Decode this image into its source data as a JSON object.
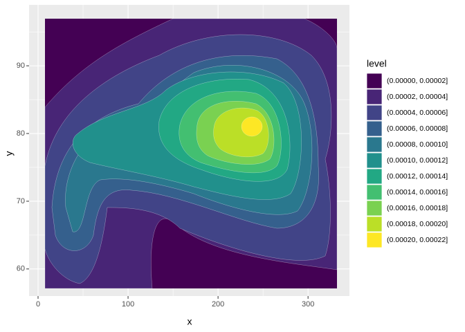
{
  "chart_data": {
    "type": "contour",
    "x_label": "x",
    "y_label": "y",
    "legend_title": "level",
    "xlim": [
      -10,
      346
    ],
    "ylim": [
      56,
      99
    ],
    "xticks": [
      0,
      100,
      200,
      300
    ],
    "yticks": [
      60,
      70,
      80,
      90
    ],
    "grid": true,
    "series": [
      {
        "name": "(0.00000, 0.00002]",
        "color": "#440154"
      },
      {
        "name": "(0.00002, 0.00004]",
        "color": "#482576"
      },
      {
        "name": "(0.00004, 0.00006]",
        "color": "#414487"
      },
      {
        "name": "(0.00006, 0.00008]",
        "color": "#35608D"
      },
      {
        "name": "(0.00008, 0.00010]",
        "color": "#2A788E"
      },
      {
        "name": "(0.00010, 0.00012]",
        "color": "#21908C"
      },
      {
        "name": "(0.00012, 0.00014]",
        "color": "#22A884"
      },
      {
        "name": "(0.00014, 0.00016]",
        "color": "#43BF71"
      },
      {
        "name": "(0.00016, 0.00018]",
        "color": "#7AD151"
      },
      {
        "name": "(0.00018, 0.00020]",
        "color": "#BBDF27"
      },
      {
        "name": "(0.00020, 0.00022]",
        "color": "#FDE725"
      }
    ]
  }
}
